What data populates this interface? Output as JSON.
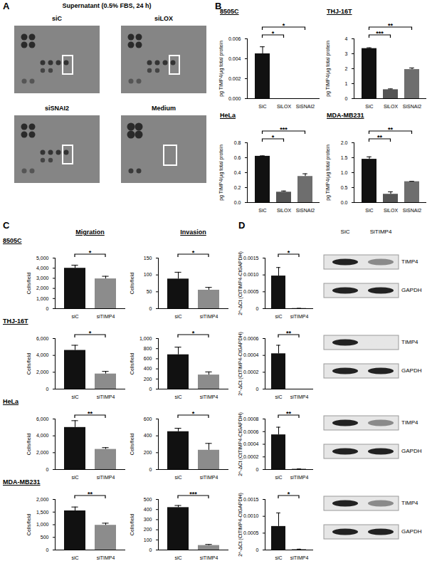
{
  "panel_labels": [
    "A",
    "B",
    "C",
    "D"
  ],
  "panel_a": {
    "title": "Supernatant (0.5% FBS, 24 h)",
    "blots": [
      "siC",
      "siLOX",
      "siSNAI2",
      "Medium"
    ]
  },
  "panel_c": {
    "columns": [
      "Migration",
      "Invasion"
    ],
    "rows": [
      "8505C",
      "THJ-16T",
      "HeLa",
      "MDA-MB231"
    ]
  },
  "panel_d": {
    "lanes": [
      "SiC",
      "SiTIMP4"
    ],
    "bands": [
      "TIMP4",
      "GAPDH"
    ]
  },
  "chart_data": [
    {
      "type": "bar",
      "title": "8505C",
      "categories": [
        "SiC",
        "SiLOX",
        "SiSNAI2"
      ],
      "values": [
        0.0045,
        0,
        0
      ],
      "errors": [
        0.0007,
        0,
        0
      ],
      "colors": [
        "#111111",
        "#555555",
        "#6e6e6e"
      ],
      "y_label": "pg TIMP4/µg total protein",
      "ylim": [
        0,
        0.006
      ],
      "yticks": [
        {
          "value": 0,
          "label": "0.000"
        },
        {
          "value": 0.002,
          "label": "0.002"
        },
        {
          "value": 0.004,
          "label": "0.004"
        },
        {
          "value": 0.006,
          "label": "0.006"
        }
      ],
      "significance": [
        {
          "from": "SiC",
          "to": "SiLOX",
          "label": "*"
        },
        {
          "from": "SiC",
          "to": "SiSNAI2",
          "label": "*"
        }
      ]
    },
    {
      "type": "bar",
      "title": "THJ-16T",
      "categories": [
        "SiC",
        "SiLOX",
        "SiSNAI2"
      ],
      "values": [
        3.35,
        0.6,
        1.95
      ],
      "errors": [
        0.05,
        0.05,
        0.1
      ],
      "colors": [
        "#111111",
        "#555555",
        "#6e6e6e"
      ],
      "y_label": "pg TIMP4/µg total protein",
      "ylim": [
        0,
        4
      ],
      "yticks": [
        0,
        1,
        2,
        3,
        4
      ],
      "significance": [
        {
          "from": "SiC",
          "to": "SiLOX",
          "label": "***"
        },
        {
          "from": "SiC",
          "to": "SiSNAI2",
          "label": "**"
        }
      ]
    },
    {
      "type": "bar",
      "title": "HeLa",
      "categories": [
        "SiC",
        "SiLOX",
        "SiSNAI2"
      ],
      "values": [
        0.62,
        0.14,
        0.35
      ],
      "errors": [
        0.005,
        0.015,
        0.035
      ],
      "colors": [
        "#111111",
        "#555555",
        "#6e6e6e"
      ],
      "y_label": "pg TIMP4/µg total protein",
      "ylim": [
        0,
        0.8
      ],
      "yticks": [
        {
          "value": 0,
          "label": "0.0"
        },
        0.2,
        0.4,
        0.6,
        0.8
      ],
      "significance": [
        {
          "from": "SiC",
          "to": "SiLOX",
          "label": "*"
        },
        {
          "from": "SiC",
          "to": "SiSNAI2",
          "label": "***"
        }
      ]
    },
    {
      "type": "bar",
      "title": "MDA-MB231",
      "categories": [
        "SiC",
        "SiLOX",
        "SiSNAI2"
      ],
      "values": [
        1.45,
        0.28,
        0.7
      ],
      "errors": [
        0.08,
        0.08,
        0.01
      ],
      "colors": [
        "#111111",
        "#555555",
        "#6e6e6e"
      ],
      "y_label": "pg TIMP4/µg total protein",
      "ylim": [
        0,
        2
      ],
      "yticks": [
        {
          "value": 0,
          "label": "0.0"
        },
        0.5,
        {
          "value": 1,
          "label": "1.0"
        },
        1.5,
        {
          "value": 2,
          "label": "2.0"
        }
      ],
      "significance": [
        {
          "from": "SiC",
          "to": "SiLOX",
          "label": "**"
        },
        {
          "from": "SiC",
          "to": "SiSNAI2",
          "label": "**"
        }
      ]
    },
    {
      "type": "bar",
      "categories": [
        "siC",
        "siTIMP4"
      ],
      "values": [
        4000,
        2950
      ],
      "errors": [
        300,
        250
      ],
      "colors": [
        "#111111",
        "#8c8c8c"
      ],
      "y_label": "Cells/field",
      "ylim": [
        0,
        5000
      ],
      "yticks": [
        0,
        {
          "value": 1000,
          "label": "1,000"
        },
        {
          "value": 2000,
          "label": "2,000"
        },
        {
          "value": 3000,
          "label": "3,000"
        },
        {
          "value": 4000,
          "label": "4,000"
        },
        {
          "value": 5000,
          "label": "5,000"
        }
      ],
      "significance": [
        {
          "from": "siC",
          "to": "siTIMP4",
          "label": "*"
        }
      ]
    },
    {
      "type": "bar",
      "categories": [
        "siC",
        "siTIMP4"
      ],
      "values": [
        88,
        55
      ],
      "errors": [
        20,
        8
      ],
      "colors": [
        "#111111",
        "#8c8c8c"
      ],
      "y_label": "Cells/field",
      "ylim": [
        0,
        150
      ],
      "yticks": [
        0,
        50,
        100,
        150
      ],
      "significance": [
        {
          "from": "siC",
          "to": "siTIMP4",
          "label": "*"
        }
      ]
    },
    {
      "type": "bar",
      "categories": [
        "siC",
        "siTIMP4"
      ],
      "values": [
        4600,
        1800
      ],
      "errors": [
        600,
        300
      ],
      "colors": [
        "#111111",
        "#8c8c8c"
      ],
      "y_label": "Cells/field",
      "ylim": [
        0,
        6000
      ],
      "yticks": [
        0,
        {
          "value": 2000,
          "label": "2,000"
        },
        {
          "value": 4000,
          "label": "4,000"
        },
        {
          "value": 6000,
          "label": "6,000"
        }
      ],
      "significance": [
        {
          "from": "siC",
          "to": "siTIMP4",
          "label": "*"
        }
      ]
    },
    {
      "type": "bar",
      "categories": [
        "siC",
        "siTIMP4"
      ],
      "values": [
        680,
        280
      ],
      "errors": [
        150,
        60
      ],
      "colors": [
        "#111111",
        "#8c8c8c"
      ],
      "y_label": "Cells/field",
      "ylim": [
        0,
        1000
      ],
      "yticks": [
        0,
        200,
        400,
        600,
        800,
        {
          "value": 1000,
          "label": "1,000"
        }
      ],
      "significance": [
        {
          "from": "siC",
          "to": "siTIMP4",
          "label": "*"
        }
      ]
    },
    {
      "type": "bar",
      "categories": [
        "siC",
        "siTIMP4"
      ],
      "values": [
        5000,
        2400
      ],
      "errors": [
        800,
        200
      ],
      "colors": [
        "#111111",
        "#8c8c8c"
      ],
      "y_label": "Cells/field",
      "ylim": [
        0,
        6000
      ],
      "yticks": [
        0,
        {
          "value": 2000,
          "label": "2,000"
        },
        {
          "value": 4000,
          "label": "4,000"
        },
        {
          "value": 6000,
          "label": "6,000"
        }
      ],
      "significance": [
        {
          "from": "siC",
          "to": "siTIMP4",
          "label": "**"
        }
      ]
    },
    {
      "type": "bar",
      "categories": [
        "siC",
        "siTIMP4"
      ],
      "values": [
        450,
        230
      ],
      "errors": [
        40,
        80
      ],
      "colors": [
        "#111111",
        "#8c8c8c"
      ],
      "y_label": "Cells/field",
      "ylim": [
        0,
        600
      ],
      "yticks": [
        0,
        200,
        400,
        600
      ],
      "significance": [
        {
          "from": "siC",
          "to": "siTIMP4",
          "label": "*"
        }
      ]
    },
    {
      "type": "bar",
      "categories": [
        "siC",
        "siTIMP4"
      ],
      "values": [
        1550,
        980
      ],
      "errors": [
        150,
        80
      ],
      "colors": [
        "#111111",
        "#8c8c8c"
      ],
      "y_label": "Cells/field",
      "ylim": [
        0,
        2000
      ],
      "yticks": [
        0,
        500,
        {
          "value": 1000,
          "label": "1,000"
        },
        {
          "value": 1500,
          "label": "1,500"
        },
        {
          "value": 2000,
          "label": "2,000"
        }
      ],
      "significance": [
        {
          "from": "siC",
          "to": "siTIMP4",
          "label": "**"
        }
      ]
    },
    {
      "type": "bar",
      "categories": [
        "siC",
        "siTIMP4"
      ],
      "values": [
        420,
        45
      ],
      "errors": [
        20,
        10
      ],
      "colors": [
        "#111111",
        "#8c8c8c"
      ],
      "y_label": "Cells/field",
      "ylim": [
        0,
        500
      ],
      "yticks": [
        0,
        100,
        200,
        300,
        400,
        500
      ],
      "significance": [
        {
          "from": "siC",
          "to": "siTIMP4",
          "label": "***"
        }
      ]
    },
    {
      "type": "bar",
      "categories": [
        "siC",
        "siTIMP4"
      ],
      "values": [
        0.00097,
        1e-05
      ],
      "errors": [
        0.00025,
        0
      ],
      "colors": [
        "#111111",
        "#8c8c8c"
      ],
      "y_label": "2^-ΔCt (CtTIMP4-CtGAPDH)",
      "ylim": [
        0,
        0.0015
      ],
      "yticks": [
        0,
        0.0005,
        {
          "value": 0.001,
          "label": "0.0010"
        },
        0.0015
      ],
      "significance": [
        {
          "from": "siC",
          "to": "siTIMP4",
          "label": "*"
        }
      ]
    },
    {
      "type": "bar",
      "categories": [
        "siC",
        "siTIMP4"
      ],
      "values": [
        0.00042,
        0
      ],
      "errors": [
        0.0001,
        0
      ],
      "colors": [
        "#111111",
        "#8c8c8c"
      ],
      "y_label": "2^-ΔCt (CtTIMP4-CtGAPDH)",
      "ylim": [
        0,
        0.0006
      ],
      "yticks": [
        0,
        0.0002,
        0.0004,
        0.0006
      ],
      "significance": [
        {
          "from": "siC",
          "to": "siTIMP4",
          "label": "**"
        }
      ]
    },
    {
      "type": "bar",
      "categories": [
        "siC",
        "siTIMP4"
      ],
      "values": [
        0.00055,
        1e-05
      ],
      "errors": [
        0.00012,
        0
      ],
      "colors": [
        "#111111",
        "#8c8c8c"
      ],
      "y_label": "2^-ΔCt (CtTIMP4-CtGAPDH)",
      "ylim": [
        0,
        0.0008
      ],
      "yticks": [
        0,
        0.0002,
        0.0004,
        0.0006,
        0.0008
      ],
      "significance": [
        {
          "from": "siC",
          "to": "siTIMP4",
          "label": "**"
        }
      ]
    },
    {
      "type": "bar",
      "categories": [
        "siC",
        "siTIMP4"
      ],
      "values": [
        0.0007,
        2e-05
      ],
      "errors": [
        0.0004,
        5e-06
      ],
      "colors": [
        "#111111",
        "#8c8c8c"
      ],
      "y_label": "2^-ΔCt (CtTIMP4-CtGAPDH)",
      "ylim": [
        0,
        0.0015
      ],
      "yticks": [
        0,
        0.0005,
        {
          "value": 0.001,
          "label": "0.0010"
        },
        0.0015
      ],
      "significance": [
        {
          "from": "siC",
          "to": "siTIMP4",
          "label": "*"
        }
      ]
    }
  ]
}
